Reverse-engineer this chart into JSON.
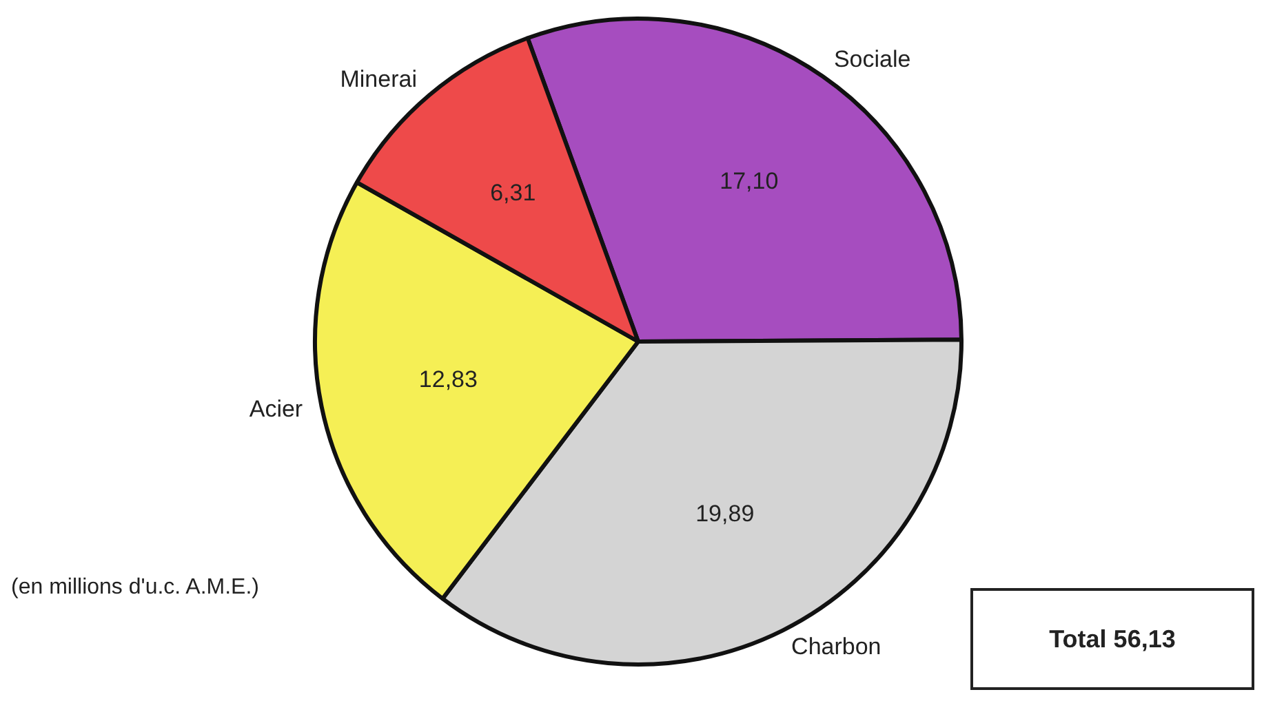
{
  "chart_data": {
    "type": "pie",
    "categories": [
      "Sociale",
      "Charbon",
      "Acier",
      "Minerai"
    ],
    "values": [
      17.1,
      19.89,
      12.83,
      6.31
    ],
    "colors": [
      "#a64dbf",
      "#d4d4d4",
      "#f5ef55",
      "#ee4a4a"
    ],
    "value_labels": [
      "17,10",
      "19,89",
      "12,83",
      "6,31"
    ],
    "annotations": [
      "(en millions d'u.c. A.M.E.)",
      "Total 56,13"
    ],
    "legend": false
  }
}
